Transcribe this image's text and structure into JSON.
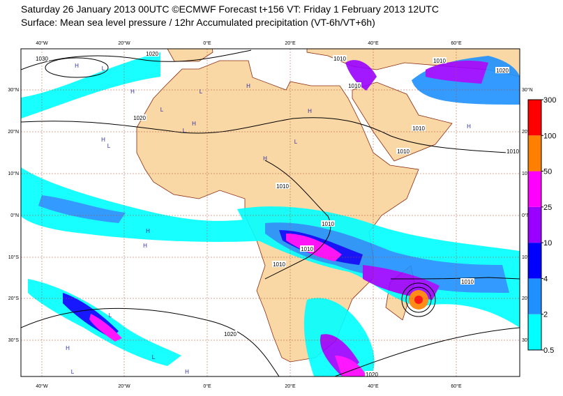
{
  "header": {
    "line1": "Saturday 26 January 2013 00UTC ©ECMWF Forecast t+156 VT: Friday 1 February 2013 12UTC",
    "line2": "Surface: Mean sea level pressure / 12hr Accumulated precipitation (VT-6h/VT+6h)"
  },
  "map": {
    "lon_labels": [
      "40°W",
      "20°W",
      "0°E",
      "20°E",
      "40°E",
      "60°E"
    ],
    "lat_labels": [
      "30°N",
      "20°N",
      "10°N",
      "0°N",
      "10°S",
      "20°S",
      "30°S"
    ],
    "isobar_labels": [
      "1030",
      "1020",
      "1020",
      "1010",
      "1010",
      "1010",
      "1020",
      "1010",
      "1010",
      "1010",
      "1010",
      "1010",
      "1010",
      "1010",
      "1010",
      "1020",
      "1020"
    ],
    "centers": [
      "H",
      "L",
      "H",
      "L",
      "H",
      "L",
      "H",
      "L",
      "H",
      "L",
      "H",
      "L",
      "H",
      "H",
      "H",
      "H",
      "H",
      "L",
      "H",
      "L",
      "H",
      "L"
    ]
  },
  "legend": {
    "levels": [
      0.5,
      2,
      4,
      10,
      25,
      50,
      100,
      300
    ],
    "colors": [
      "#00ffff",
      "#1e90ff",
      "#0000ff",
      "#9900ff",
      "#ff00ff",
      "#ff8000",
      "#ff0000"
    ]
  }
}
